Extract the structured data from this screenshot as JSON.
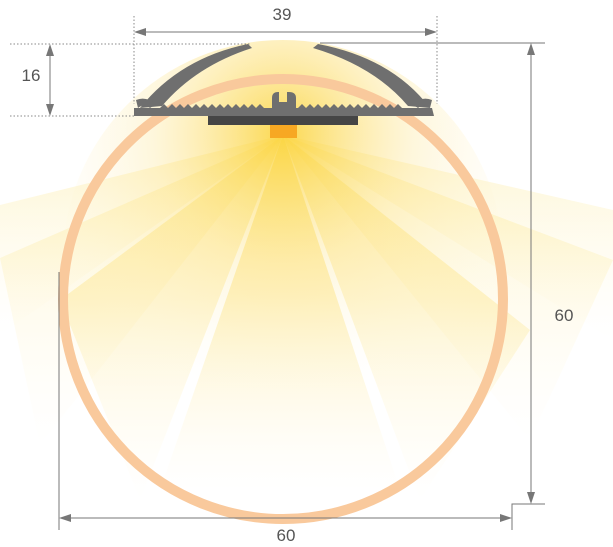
{
  "dimensions": {
    "top_width": "39",
    "cap_height": "16",
    "overall_height": "60",
    "overall_width": "60"
  },
  "colors": {
    "diffuser_ring": "#f9c99c",
    "light_core": "#fbd94a",
    "light_fade": "#fff6d6",
    "profile": "#6f6f6f",
    "led_strip": "#454545",
    "led_chip": "#f7a823",
    "dimension_line": "#777777"
  }
}
